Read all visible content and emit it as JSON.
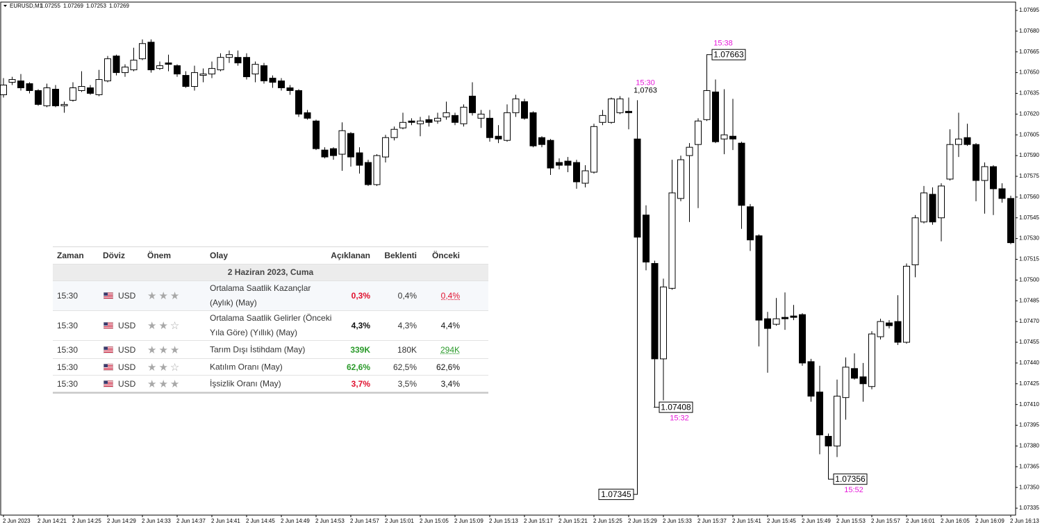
{
  "chart_data": {
    "type": "candlestick",
    "symbol": "EURUSD,M1",
    "header_values": [
      1.07255,
      1.07269,
      1.07253,
      1.07269
    ],
    "bull_color": "#ffffff",
    "bear_color": "#000000",
    "annotation_color": "#e619d9",
    "ylim": [
      1.0733,
      1.07701
    ],
    "yticks": [
      1.07695,
      {
        "value": 1.0768,
        "label": "1.07680"
      },
      1.07665,
      {
        "value": 1.0765,
        "label": "1.07650"
      },
      1.07635,
      {
        "value": 1.0762,
        "label": "1.07620"
      },
      1.07605,
      {
        "value": 1.0759,
        "label": "1.07590"
      },
      1.07575,
      {
        "value": 1.0756,
        "label": "1.07560"
      },
      1.07545,
      {
        "value": 1.0753,
        "label": "1.07530"
      },
      1.07515,
      {
        "value": 1.075,
        "label": "1.07500"
      },
      1.07485,
      {
        "value": 1.0747,
        "label": "1.07470"
      },
      1.07455,
      {
        "value": 1.0744,
        "label": "1.07440"
      },
      1.07425,
      {
        "value": 1.0741,
        "label": "1.07410"
      },
      1.07395,
      {
        "value": 1.0738,
        "label": "1.07380"
      },
      1.07365,
      {
        "value": 1.0735,
        "label": "1.07350"
      },
      1.07335
    ],
    "xticks": [
      "2 Jun 2023",
      "2 Jun 14:21",
      "2 Jun 14:25",
      "2 Jun 14:29",
      "2 Jun 14:33",
      "2 Jun 14:37",
      "2 Jun 14:41",
      "2 Jun 14:45",
      "2 Jun 14:49",
      "2 Jun 14:53",
      "2 Jun 14:57",
      "2 Jun 15:01",
      "2 Jun 15:05",
      "2 Jun 15:09",
      "2 Jun 15:13",
      "2 Jun 15:17",
      "2 Jun 15:21",
      "2 Jun 15:25",
      "2 Jun 15:29",
      "2 Jun 15:33",
      "2 Jun 15:37",
      "2 Jun 15:41",
      "2 Jun 15:45",
      "2 Jun 15:49",
      "2 Jun 15:53",
      "2 Jun 15:57",
      "2 Jun 16:01",
      "2 Jun 16:05",
      "2 Jun 16:09",
      "2 Jun 16:13"
    ],
    "open": [
      1.07634,
      1.07643,
      1.07644,
      1.07642,
      1.07637,
      1.07626,
      1.07638,
      1.07626,
      1.0763,
      1.07637,
      1.07639,
      1.07634,
      1.07644,
      1.07662,
      1.0765,
      1.07652,
      1.0766,
      1.07672,
      1.07653,
      1.07657,
      1.07655,
      1.07648,
      1.0764,
      1.07648,
      1.07649,
      1.07652,
      1.07661,
      1.07661,
      1.07661,
      1.07649,
      1.07655,
      1.07646,
      1.07644,
      1.07639,
      1.07637,
      1.07621,
      1.07615,
      1.07594,
      1.07595,
      1.07591,
      1.07606,
      1.07592,
      1.07585,
      1.07569,
      1.07589,
      1.07603,
      1.0761,
      1.07615,
      1.07613,
      1.07616,
      1.07615,
      1.07618,
      1.07619,
      1.07613,
      1.07633,
      1.07617,
      1.07617,
      1.07604,
      1.07601,
      1.07621,
      1.07629,
      1.07621,
      1.07603,
      1.07601,
      1.07585,
      1.07586,
      1.07585,
      1.0757,
      1.07578,
      1.07614,
      1.07614,
      1.07621,
      1.07622,
      1.07602,
      1.07547,
      1.07512,
      1.07443,
      1.07494,
      1.07559,
      1.0759,
      1.07598,
      1.07616,
      1.07636,
      1.07602,
      1.07604,
      1.07599,
      1.07553,
      1.07532,
      1.07472,
      1.07468,
      1.07473,
      1.07474,
      1.07475,
      1.07441,
      1.07419,
      1.07387,
      1.0738,
      1.07415,
      1.07436,
      1.0743,
      1.07423,
      1.07459,
      1.07469,
      1.0747,
      1.07455,
      1.07511,
      1.07542,
      1.07562,
      1.07545,
      1.07573,
      1.07598,
      1.07603,
      1.07598,
      1.07572,
      1.07582,
      1.07566,
      1.07559
    ],
    "high": [
      1.07646,
      1.07647,
      1.07649,
      1.07643,
      1.07638,
      1.07642,
      1.07641,
      1.07629,
      1.07643,
      1.07651,
      1.07641,
      1.07652,
      1.07662,
      1.07663,
      1.07656,
      1.07668,
      1.07674,
      1.07674,
      1.07658,
      1.07663,
      1.07656,
      1.07651,
      1.07655,
      1.07653,
      1.07658,
      1.07664,
      1.07666,
      1.07666,
      1.07664,
      1.07658,
      1.07657,
      1.07648,
      1.07646,
      1.07641,
      1.07638,
      1.07623,
      1.07616,
      1.07596,
      1.07596,
      1.07614,
      1.07607,
      1.07596,
      1.07587,
      1.07591,
      1.07605,
      1.07611,
      1.07621,
      1.07617,
      1.07618,
      1.07619,
      1.07621,
      1.07629,
      1.07621,
      1.07627,
      1.07643,
      1.07623,
      1.07623,
      1.07612,
      1.07627,
      1.07634,
      1.07631,
      1.07622,
      1.07604,
      1.07602,
      1.07588,
      1.07589,
      1.07587,
      1.07583,
      1.07613,
      1.07623,
      1.07632,
      1.07633,
      1.07632,
      1.0763,
      1.07554,
      1.07514,
      1.07501,
      1.07587,
      1.0759,
      1.07599,
      1.07617,
      1.07663,
      1.07645,
      1.07638,
      1.07631,
      1.076,
      1.07555,
      1.07533,
      1.07477,
      1.07487,
      1.07491,
      1.07482,
      1.07476,
      1.07443,
      1.07438,
      1.07389,
      1.07428,
      1.07444,
      1.07447,
      1.0744,
      1.07463,
      1.07472,
      1.07471,
      1.07489,
      1.07512,
      1.07547,
      1.07568,
      1.07567,
      1.0757,
      1.07609,
      1.07621,
      1.07613,
      1.07599,
      1.07585,
      1.07583,
      1.0757,
      1.07561
    ],
    "low": [
      1.07632,
      1.07641,
      1.07637,
      1.07635,
      1.07626,
      1.07625,
      1.07625,
      1.07621,
      1.07629,
      1.07636,
      1.07634,
      1.07633,
      1.07643,
      1.07648,
      1.07647,
      1.07651,
      1.07659,
      1.0765,
      1.07652,
      1.07651,
      1.07647,
      1.07639,
      1.07637,
      1.07643,
      1.07646,
      1.07651,
      1.07657,
      1.07655,
      1.07645,
      1.07643,
      1.07642,
      1.07639,
      1.07637,
      1.07634,
      1.07618,
      1.07616,
      1.07594,
      1.07588,
      1.07587,
      1.07579,
      1.07582,
      1.07577,
      1.07568,
      1.07568,
      1.07585,
      1.07601,
      1.07609,
      1.07612,
      1.07604,
      1.07611,
      1.07613,
      1.07616,
      1.07612,
      1.07611,
      1.07619,
      1.0761,
      1.076,
      1.07599,
      1.076,
      1.07618,
      1.07616,
      1.07596,
      1.07596,
      1.07576,
      1.0758,
      1.07578,
      1.07566,
      1.07567,
      1.07577,
      1.07612,
      1.07613,
      1.0762,
      1.07609,
      1.07345,
      1.07507,
      1.07408,
      1.07413,
      1.07493,
      1.07557,
      1.07542,
      1.07552,
      1.07615,
      1.07599,
      1.07591,
      1.07594,
      1.07537,
      1.07521,
      1.07452,
      1.07433,
      1.07467,
      1.07464,
      1.07471,
      1.07438,
      1.07412,
      1.07374,
      1.07356,
      1.07372,
      1.07399,
      1.07428,
      1.07412,
      1.07421,
      1.07457,
      1.07465,
      1.07453,
      1.07454,
      1.07502,
      1.07541,
      1.0754,
      1.07528,
      1.07572,
      1.07589,
      1.07597,
      1.07557,
      1.07548,
      1.07547,
      1.07556,
      1.07526
    ],
    "close": [
      1.07641,
      1.07645,
      1.07639,
      1.07637,
      1.07627,
      1.07639,
      1.07626,
      1.07627,
      1.07639,
      1.0764,
      1.07635,
      1.07645,
      1.0766,
      1.0765,
      1.07654,
      1.07659,
      1.07671,
      1.07652,
      1.07655,
      1.07656,
      1.07649,
      1.0764,
      1.0765,
      1.07649,
      1.07653,
      1.07661,
      1.07663,
      1.07657,
      1.07647,
      1.07656,
      1.07644,
      1.07643,
      1.07639,
      1.07637,
      1.0762,
      1.07617,
      1.07595,
      1.07589,
      1.0759,
      1.07608,
      1.07589,
      1.07583,
      1.07569,
      1.0759,
      1.07603,
      1.07609,
      1.07614,
      1.07614,
      1.07615,
      1.07614,
      1.07617,
      1.07621,
      1.07614,
      1.07625,
      1.07621,
      1.0762,
      1.07603,
      1.07602,
      1.07621,
      1.07631,
      1.07617,
      1.07597,
      1.07598,
      1.07581,
      1.07583,
      1.07583,
      1.07571,
      1.07579,
      1.07611,
      1.07619,
      1.07631,
      1.07631,
      1.07621,
      1.07531,
      1.07513,
      1.07443,
      1.07495,
      1.07563,
      1.07587,
      1.07596,
      1.07615,
      1.07637,
      1.076,
      1.07605,
      1.07602,
      1.07554,
      1.07529,
      1.07471,
      1.07465,
      1.07472,
      1.07472,
      1.07473,
      1.0744,
      1.07416,
      1.07388,
      1.0738,
      1.07416,
      1.07437,
      1.07429,
      1.07425,
      1.07461,
      1.0747,
      1.07467,
      1.07455,
      1.0751,
      1.07545,
      1.07563,
      1.07542,
      1.07568,
      1.07598,
      1.07602,
      1.07598,
      1.07572,
      1.07582,
      1.07566,
      1.07559,
      1.07527
    ],
    "annotations": [
      {
        "time": "15:30",
        "value": {
          "value": 1.0763,
          "label": "1,0763"
        }
      },
      {
        "time": "15:38",
        "value": 1.07663
      },
      {
        "time": "15:32",
        "value": 1.07408
      },
      {
        "time": "15:52",
        "value": 1.07356
      },
      {
        "value": 1.07345
      }
    ]
  },
  "calendar": {
    "headers": [
      "Zaman",
      "Döviz",
      "Önem",
      "Olay",
      "Açıklanan",
      "Beklenti",
      "Önceki"
    ],
    "date": "2 Haziran 2023, Cuma",
    "rows": [
      {
        "time": "15:30",
        "currency": "USD",
        "importance": 3,
        "event": "Ortalama Saatlik Kazançlar (Aylık) (May)",
        "actual": "0,3%",
        "forecast": "0,4%",
        "previous": "0,4%",
        "actual_color": "#e0102e",
        "previous_color": "#e0102e"
      },
      {
        "time": "15:30",
        "currency": "USD",
        "importance": 2,
        "event": "Ortalama Saatlik Gelirler (Önceki Yıla Göre) (Yıllık) (May)",
        "actual": "4,3%",
        "forecast": "4,3%",
        "previous": "4,4%",
        "actual_color": "#111111",
        "previous_color": "#111111"
      },
      {
        "time": "15:30",
        "currency": "USD",
        "importance": 3,
        "event": "Tarım Dışı İstihdam (May)",
        "actual": "339K",
        "forecast": "180K",
        "previous": "294K",
        "actual_color": "#2a9a2a",
        "previous_color": "#2a9a2a"
      },
      {
        "time": "15:30",
        "currency": "USD",
        "importance": 2,
        "event": "Katılım Oranı (May)",
        "actual": "62,6%",
        "forecast": "62,5%",
        "previous": "62,6%",
        "actual_color": "#2a9a2a",
        "previous_color": "#111111"
      },
      {
        "time": "15:30",
        "currency": "USD",
        "importance": 3,
        "event": "İşsizlik Oranı (May)",
        "actual": "3,7%",
        "forecast": "3,5%",
        "previous": "3,4%",
        "actual_color": "#e0102e",
        "previous_color": "#111111"
      }
    ]
  }
}
